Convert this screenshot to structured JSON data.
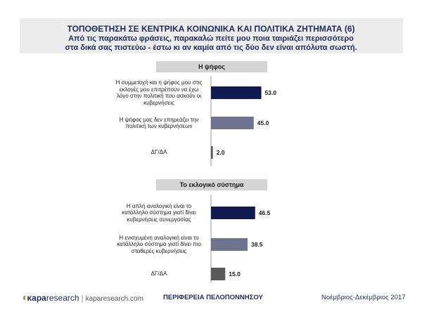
{
  "header": {
    "title": "ΤΟΠΟΘΕΤΗΣΗ ΣΕ ΚΕΝΤΡΙΚΑ ΚΟΙΝΩΝΙΚΑ ΚΑΙ ΠΟΛΙΤΙΚΑ ΖΗΤΗΜΑΤΑ (6)",
    "subtitle_line1": "Από τις παρακάτω φράσεις, παρακαλώ πείτε μου ποια ταιριάζει περισσότερο",
    "subtitle_line2": "στα δικά σας πιστεύω - έστω κι αν καμία από τις δύο δεν είναι απόλυτα σωστή."
  },
  "footer": {
    "logo_mark": "◖",
    "logo_kapa": "κapa",
    "logo_research": "research",
    "logo_sep": "|",
    "logo_url": "kaparesearch.com",
    "region": "ΠΕΡΙΦΕΡΕΙΑ ΠΕΛΟΠΟΝΝΗΣΟΥ",
    "date": "Νοέμβριος-Δεκέμβριος 2017"
  },
  "colors": {
    "dark": "#111a4f",
    "medium": "#6e7390",
    "gray": "#595959",
    "title": "#1f2a5c"
  },
  "chart_data": [
    {
      "type": "bar",
      "orientation": "horizontal",
      "title": "Η ψήφος",
      "categories": [
        [
          "Η συμμετοχή και η ψήφος μου στις",
          "εκλογές μου επιτρέπουν να έχω",
          "λόγο στην πολιτική που ασκούν οι",
          "κυβερνήσεις"
        ],
        [
          "Η ψήφος μας δεν επηρεάζει την",
          "πολιτική των κυβερνήσεων"
        ],
        [
          "ΔΓ/ΔΑ"
        ]
      ],
      "values": [
        53.0,
        45.0,
        2.0
      ],
      "labels": [
        "53.0",
        "45.0",
        "2.0"
      ],
      "bar_colors": [
        "#111a4f",
        "#6e7390",
        "#595959"
      ]
    },
    {
      "type": "bar",
      "orientation": "horizontal",
      "title": "Το εκλογικό σύστημα",
      "categories": [
        [
          "Η απλή αναλογική είναι το",
          "κατάλληλο σύστημα γιατί δίνει",
          "κυβερνήσεις συνεργασίας"
        ],
        [
          "Η ενισχυμένη αναλογική είναι το",
          "κατάλληλο σύστημα γιατί δίνει πιο",
          "σταθερές κυβερνήσεις"
        ],
        [
          "ΔΓ/ΔΑ"
        ]
      ],
      "values": [
        46.5,
        38.5,
        15.0
      ],
      "labels": [
        "46.5",
        "38.5",
        "15.0"
      ],
      "bar_colors": [
        "#111a4f",
        "#6e7390",
        "#595959"
      ]
    }
  ]
}
